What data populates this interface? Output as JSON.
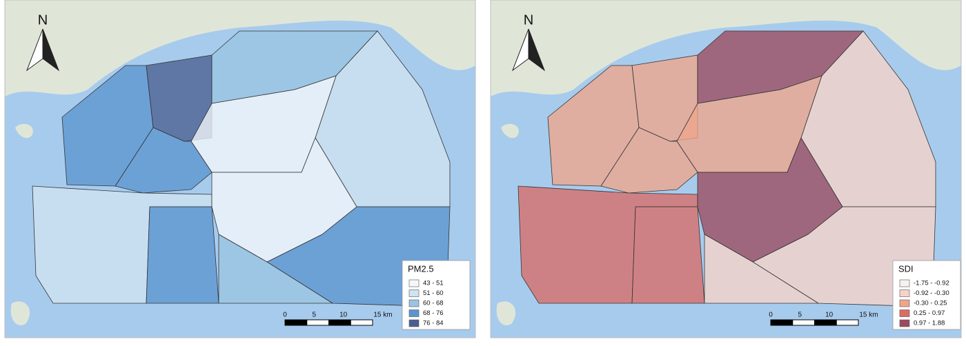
{
  "panels": [
    {
      "north": "N",
      "legend": {
        "title": "PM2.5",
        "items": [
          {
            "label": "43 - 51",
            "color": "#f4f7fb"
          },
          {
            "label": "51 - 60",
            "color": "#cfe3f1"
          },
          {
            "label": "60 - 68",
            "color": "#9ac4e2"
          },
          {
            "label": "68 - 76",
            "color": "#5b95cf"
          },
          {
            "label": "76 - 84",
            "color": "#4a5f8f"
          }
        ]
      },
      "scale": {
        "labels": [
          "0",
          "5",
          "10",
          "15 km"
        ]
      }
    },
    {
      "north": "N",
      "legend": {
        "title": "SDI",
        "items": [
          {
            "label": "-1.75 - -0.92",
            "color": "#f7f1f0"
          },
          {
            "label": "-0.92 - -0.30",
            "color": "#f6d3c8"
          },
          {
            "label": "-0.30 - 0.25",
            "color": "#eea58c"
          },
          {
            "label": "0.25 - 0.97",
            "color": "#d96c66"
          },
          {
            "label": "0.97 - 1.88",
            "color": "#9c4a5e"
          }
        ]
      },
      "scale": {
        "labels": [
          "0",
          "5",
          "10",
          "15 km"
        ]
      }
    }
  ]
}
